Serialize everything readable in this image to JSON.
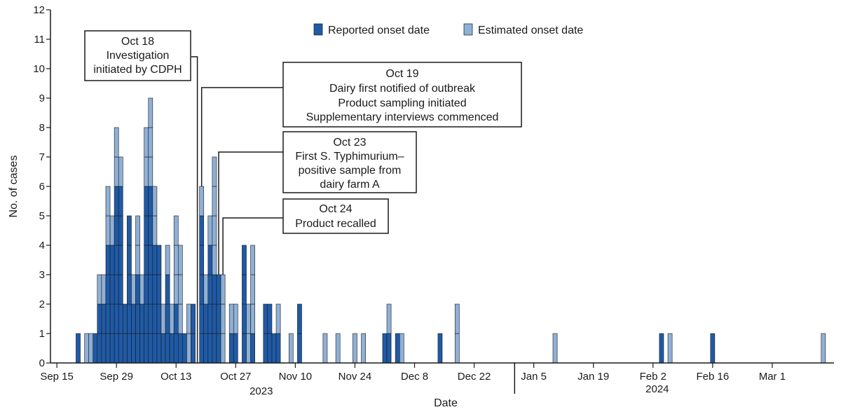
{
  "chart_data": {
    "type": "bar",
    "stacked": true,
    "title": "",
    "xlabel": "Date",
    "ylabel": "No. of cases",
    "ylim": [
      0,
      12
    ],
    "yticks": [
      0,
      1,
      2,
      3,
      4,
      5,
      6,
      7,
      8,
      9,
      10,
      11,
      12
    ],
    "grid": false,
    "legend_position": "top-center",
    "x_start_date": "2023-09-14",
    "x_end_date": "2024-03-15",
    "xticks": [
      {
        "date": "2023-09-15",
        "label": "Sep 15"
      },
      {
        "date": "2023-09-29",
        "label": "Sep 29"
      },
      {
        "date": "2023-10-13",
        "label": "Oct 13"
      },
      {
        "date": "2023-10-27",
        "label": "Oct 27"
      },
      {
        "date": "2023-11-10",
        "label": "Nov 10"
      },
      {
        "date": "2023-11-24",
        "label": "Nov 24"
      },
      {
        "date": "2023-12-08",
        "label": "Dec 8"
      },
      {
        "date": "2023-12-22",
        "label": "Dec 22"
      },
      {
        "date": "2024-01-05",
        "label": "Jan 5"
      },
      {
        "date": "2024-01-19",
        "label": "Jan 19"
      },
      {
        "date": "2024-02-02",
        "label": "Feb 2"
      },
      {
        "date": "2024-02-16",
        "label": "Feb 16"
      },
      {
        "date": "2024-03-01",
        "label": "Mar 1"
      }
    ],
    "year_labels": [
      {
        "date": "2023-11-02",
        "label": "2023"
      },
      {
        "date": "2024-02-03",
        "label": "2024"
      }
    ],
    "year_divider_date": "2023-12-31",
    "series": [
      {
        "name": "Reported onset date",
        "color": "#1f5aa6"
      },
      {
        "name": "Estimated onset date",
        "color": "#8fb0d6"
      }
    ],
    "days": [
      {
        "date": "2023-09-20",
        "reported": 1,
        "estimated": 0
      },
      {
        "date": "2023-09-22",
        "reported": 0,
        "estimated": 1
      },
      {
        "date": "2023-09-23",
        "reported": 0,
        "estimated": 1
      },
      {
        "date": "2023-09-24",
        "reported": 1,
        "estimated": 0
      },
      {
        "date": "2023-09-25",
        "reported": 2,
        "estimated": 1
      },
      {
        "date": "2023-09-26",
        "reported": 2,
        "estimated": 1
      },
      {
        "date": "2023-09-27",
        "reported": 4,
        "estimated": 2
      },
      {
        "date": "2023-09-28",
        "reported": 4,
        "estimated": 1
      },
      {
        "date": "2023-09-29",
        "reported": 6,
        "estimated": 2
      },
      {
        "date": "2023-09-30",
        "reported": 6,
        "estimated": 1
      },
      {
        "date": "2023-10-01",
        "reported": 2,
        "estimated": 0
      },
      {
        "date": "2023-10-02",
        "reported": 5,
        "estimated": 0
      },
      {
        "date": "2023-10-03",
        "reported": 2,
        "estimated": 1
      },
      {
        "date": "2023-10-04",
        "reported": 3,
        "estimated": 2
      },
      {
        "date": "2023-10-05",
        "reported": 2,
        "estimated": 1
      },
      {
        "date": "2023-10-06",
        "reported": 6,
        "estimated": 2
      },
      {
        "date": "2023-10-07",
        "reported": 6,
        "estimated": 3
      },
      {
        "date": "2023-10-08",
        "reported": 4,
        "estimated": 2
      },
      {
        "date": "2023-10-09",
        "reported": 4,
        "estimated": 0
      },
      {
        "date": "2023-10-10",
        "reported": 1,
        "estimated": 1
      },
      {
        "date": "2023-10-11",
        "reported": 3,
        "estimated": 1
      },
      {
        "date": "2023-10-12",
        "reported": 1,
        "estimated": 1
      },
      {
        "date": "2023-10-13",
        "reported": 2,
        "estimated": 3
      },
      {
        "date": "2023-10-14",
        "reported": 1,
        "estimated": 3
      },
      {
        "date": "2023-10-15",
        "reported": 1,
        "estimated": 0
      },
      {
        "date": "2023-10-16",
        "reported": 0,
        "estimated": 2
      },
      {
        "date": "2023-10-17",
        "reported": 2,
        "estimated": 0
      },
      {
        "date": "2023-10-19",
        "reported": 5,
        "estimated": 1
      },
      {
        "date": "2023-10-20",
        "reported": 2,
        "estimated": 1
      },
      {
        "date": "2023-10-21",
        "reported": 4,
        "estimated": 1
      },
      {
        "date": "2023-10-22",
        "reported": 3,
        "estimated": 4
      },
      {
        "date": "2023-10-23",
        "reported": 3,
        "estimated": 0
      },
      {
        "date": "2023-10-24",
        "reported": 0,
        "estimated": 3
      },
      {
        "date": "2023-10-26",
        "reported": 1,
        "estimated": 1
      },
      {
        "date": "2023-10-27",
        "reported": 1,
        "estimated": 1
      },
      {
        "date": "2023-10-29",
        "reported": 4,
        "estimated": 0
      },
      {
        "date": "2023-10-30",
        "reported": 0,
        "estimated": 2
      },
      {
        "date": "2023-10-31",
        "reported": 1,
        "estimated": 3
      },
      {
        "date": "2023-11-03",
        "reported": 2,
        "estimated": 0
      },
      {
        "date": "2023-11-04",
        "reported": 2,
        "estimated": 0
      },
      {
        "date": "2023-11-05",
        "reported": 1,
        "estimated": 0
      },
      {
        "date": "2023-11-06",
        "reported": 1,
        "estimated": 1
      },
      {
        "date": "2023-11-09",
        "reported": 0,
        "estimated": 1
      },
      {
        "date": "2023-11-11",
        "reported": 2,
        "estimated": 0
      },
      {
        "date": "2023-11-17",
        "reported": 0,
        "estimated": 1
      },
      {
        "date": "2023-11-20",
        "reported": 0,
        "estimated": 1
      },
      {
        "date": "2023-11-24",
        "reported": 0,
        "estimated": 1
      },
      {
        "date": "2023-11-26",
        "reported": 0,
        "estimated": 1
      },
      {
        "date": "2023-12-01",
        "reported": 1,
        "estimated": 0
      },
      {
        "date": "2023-12-02",
        "reported": 1,
        "estimated": 1
      },
      {
        "date": "2023-12-04",
        "reported": 1,
        "estimated": 0
      },
      {
        "date": "2023-12-05",
        "reported": 0,
        "estimated": 1
      },
      {
        "date": "2023-12-14",
        "reported": 1,
        "estimated": 0
      },
      {
        "date": "2023-12-18",
        "reported": 0,
        "estimated": 2
      },
      {
        "date": "2024-01-10",
        "reported": 0,
        "estimated": 1
      },
      {
        "date": "2024-02-04",
        "reported": 1,
        "estimated": 0
      },
      {
        "date": "2024-02-06",
        "reported": 0,
        "estimated": 1
      },
      {
        "date": "2024-02-16",
        "reported": 1,
        "estimated": 0
      },
      {
        "date": "2024-03-13",
        "reported": 0,
        "estimated": 1
      }
    ],
    "annotations": [
      {
        "id": "oct18",
        "target_date": "2023-10-18",
        "lines": [
          "Oct 18",
          "Investigation",
          "initiated by CDPH"
        ]
      },
      {
        "id": "oct19",
        "target_date": "2023-10-19",
        "lines": [
          "Oct 19",
          "Dairy first notified of outbreak",
          "Product sampling initiated",
          "Supplementary interviews commenced"
        ]
      },
      {
        "id": "oct23",
        "target_date": "2023-10-23",
        "lines": [
          "Oct 23",
          "First S. Typhimurium–",
          "positive sample from",
          "dairy farm A"
        ]
      },
      {
        "id": "oct24",
        "target_date": "2023-10-24",
        "lines": [
          "Oct 24",
          "Product recalled"
        ]
      }
    ]
  }
}
